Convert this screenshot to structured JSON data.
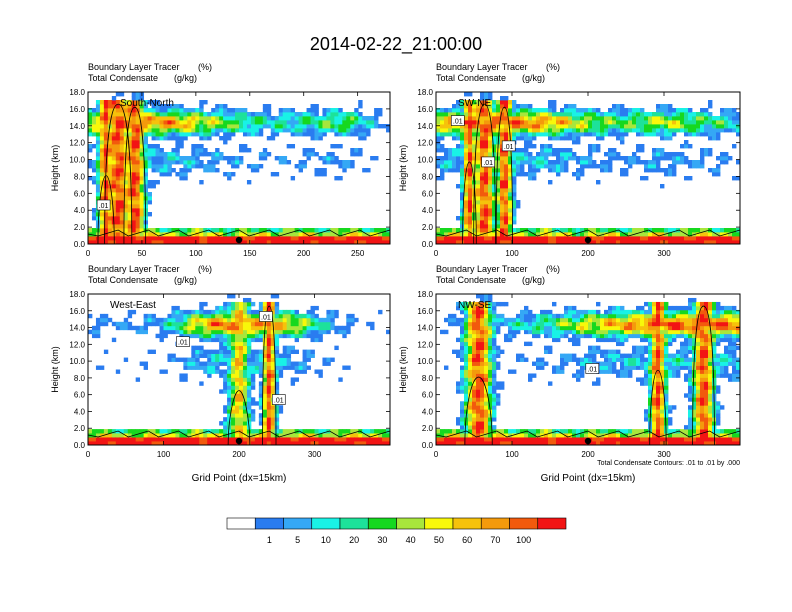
{
  "figure": {
    "title": "2014-02-22_21:00:00",
    "colorbar": {
      "colors": [
        "#ffffff",
        "#2a7cf0",
        "#35a8f5",
        "#19f2e6",
        "#1de29a",
        "#16d81f",
        "#a8e63c",
        "#f8f80a",
        "#f6c20b",
        "#f49a0c",
        "#f25a0d",
        "#f21414"
      ],
      "labels": [
        "1",
        "5",
        "10",
        "20",
        "30",
        "40",
        "50",
        "60",
        "70",
        "100"
      ]
    }
  },
  "chart_data": [
    {
      "type": "heatmap",
      "panel_label": "South-North",
      "field_title": "Boundary Layer Tracer",
      "field_units": "(%)",
      "contour_title": "Total Condensate",
      "contour_units": "(g/kg)",
      "ylabel": "Height (km)",
      "xlabel": "",
      "xlim": [
        0,
        280
      ],
      "ylim": [
        0,
        18
      ],
      "xticks": [
        "0",
        "50",
        "100",
        "150",
        "200",
        "250"
      ],
      "yticks": [
        "0.0",
        "2.0",
        "4.0",
        "6.0",
        "8.0",
        "10.0",
        "12.0",
        "14.0",
        "16.0",
        "18.0"
      ],
      "contour_labels": [
        ".01"
      ],
      "contour_label_pos": [
        [
          14,
          4.5
        ]
      ],
      "marker_x": 140
    },
    {
      "type": "heatmap",
      "panel_label": "SW-NE",
      "field_title": "Boundary Layer Tracer",
      "field_units": "(%)",
      "contour_title": "Total Condensate",
      "contour_units": "(g/kg)",
      "ylabel": "Height (km)",
      "xlabel": "",
      "xlim": [
        0,
        400
      ],
      "ylim": [
        0,
        18
      ],
      "xticks": [
        "0",
        "100",
        "200",
        "300"
      ],
      "yticks": [
        "0.0",
        "2.0",
        "4.0",
        "6.0",
        "8.0",
        "10.0",
        "12.0",
        "14.0",
        "16.0",
        "18.0"
      ],
      "contour_labels": [
        ".01",
        ".01",
        ".01"
      ],
      "contour_label_pos": [
        [
          28,
          14.5
        ],
        [
          95,
          11.5
        ],
        [
          68,
          9.6
        ]
      ],
      "marker_x": 200
    },
    {
      "type": "heatmap",
      "panel_label": "West-East",
      "field_title": "Boundary Layer Tracer",
      "field_units": "(%)",
      "contour_title": "Total Condensate",
      "contour_units": "(g/kg)",
      "ylabel": "Height (km)",
      "xlabel": "Grid Point (dx=15km)",
      "xlim": [
        0,
        400
      ],
      "ylim": [
        0,
        18
      ],
      "xticks": [
        "0",
        "100",
        "200",
        "300"
      ],
      "yticks": [
        "0.0",
        "2.0",
        "4.0",
        "6.0",
        "8.0",
        "10.0",
        "12.0",
        "14.0",
        "16.0",
        "18.0"
      ],
      "contour_labels": [
        ".01",
        ".01",
        ".01"
      ],
      "contour_label_pos": [
        [
          125,
          12.2
        ],
        [
          235,
          15.2
        ],
        [
          252,
          5.3
        ]
      ],
      "marker_x": 200
    },
    {
      "type": "heatmap",
      "panel_label": "NW-SE",
      "field_title": "Boundary Layer Tracer",
      "field_units": "(%)",
      "contour_title": "Total Condensate",
      "contour_units": "(g/kg)",
      "ylabel": "Height (km)",
      "xlabel": "Grid Point (dx=15km)",
      "xlim": [
        0,
        400
      ],
      "ylim": [
        0,
        18
      ],
      "xticks": [
        "0",
        "100",
        "200",
        "300"
      ],
      "yticks": [
        "0.0",
        "2.0",
        "4.0",
        "6.0",
        "8.0",
        "10.0",
        "12.0",
        "14.0",
        "16.0",
        "18.0"
      ],
      "contour_labels": [
        ".01"
      ],
      "contour_label_pos": [
        [
          205,
          9.0
        ]
      ],
      "marker_x": 200,
      "footnote": "Total Condensate Contours: .01 to .01 by .000"
    }
  ]
}
